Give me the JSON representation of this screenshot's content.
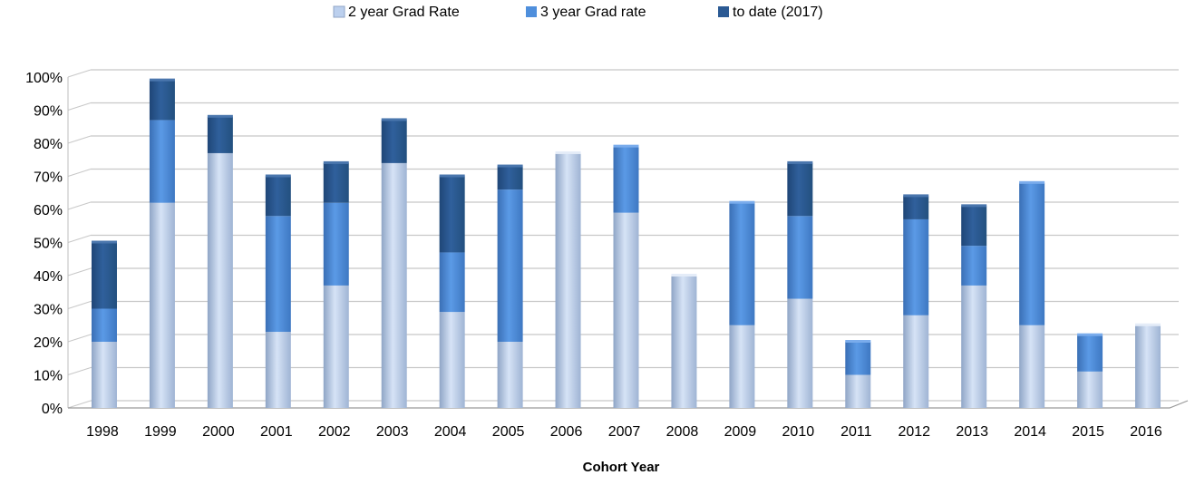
{
  "chart_data": {
    "type": "bar",
    "stacked": true,
    "title": "",
    "xlabel": "Cohort Year",
    "ylabel": "",
    "ylim": [
      0,
      100
    ],
    "yticks": [
      "0%",
      "10%",
      "20%",
      "30%",
      "40%",
      "50%",
      "60%",
      "70%",
      "80%",
      "90%",
      "100%"
    ],
    "grid": true,
    "legend_position": "top",
    "categories": [
      "1998",
      "1999",
      "2000",
      "2001",
      "2002",
      "2003",
      "2004",
      "2005",
      "2006",
      "2007",
      "2008",
      "2009",
      "2010",
      "2011",
      "2012",
      "2013",
      "2014",
      "2015",
      "2016"
    ],
    "series": [
      {
        "name": "2 year Grad Rate",
        "color": "#bcd0ee",
        "values": [
          20,
          62,
          77,
          23,
          37,
          74,
          29,
          20,
          77,
          59,
          40,
          25,
          33,
          10,
          28,
          37,
          25,
          11,
          25
        ]
      },
      {
        "name": "3 year Grad rate",
        "color": "#4f8fdc",
        "values": [
          10,
          25,
          0,
          35,
          25,
          0,
          18,
          46,
          0,
          20,
          0,
          37,
          25,
          10,
          29,
          12,
          43,
          11,
          0
        ]
      },
      {
        "name": "to date (2017)",
        "color": "#2b5a94",
        "values": [
          20,
          12,
          11,
          12,
          12,
          13,
          23,
          7,
          0,
          0,
          0,
          0,
          16,
          0,
          7,
          12,
          0,
          0,
          0
        ]
      }
    ]
  }
}
